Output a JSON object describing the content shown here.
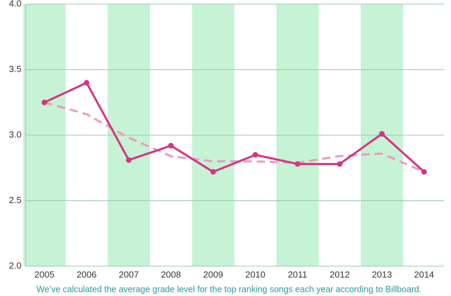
{
  "chart_data": {
    "type": "line",
    "categories": [
      "2005",
      "2006",
      "2007",
      "2008",
      "2009",
      "2010",
      "2011",
      "2012",
      "2013",
      "2014"
    ],
    "series": [
      {
        "color": "#d63384",
        "dashed": false,
        "markers": true,
        "values": [
          3.25,
          3.4,
          2.81,
          2.92,
          2.72,
          2.85,
          2.78,
          2.78,
          3.01,
          2.72
        ]
      },
      {
        "color": "#ee99bf",
        "dashed": true,
        "markers": false,
        "values": [
          3.25,
          3.16,
          2.98,
          2.84,
          2.8,
          2.8,
          2.79,
          2.84,
          2.86,
          2.72
        ]
      }
    ],
    "ylim": [
      2,
      4
    ],
    "yticks": [
      {
        "value": 2,
        "label": "2.0"
      },
      {
        "value": 2.5,
        "label": "2.5"
      },
      {
        "value": 3,
        "label": "3.0"
      },
      {
        "value": 3.5,
        "label": "3.5"
      },
      {
        "value": 4,
        "label": "4.0"
      }
    ],
    "grid": true,
    "band_color": "#c6f3d3",
    "caption": "We’ve calculated the average grade level for the top ranking songs each year according to Billboard."
  }
}
